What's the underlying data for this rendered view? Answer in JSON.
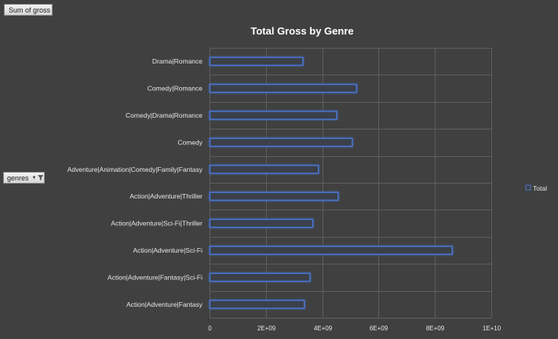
{
  "pivot": {
    "values_button": "Sum of gross",
    "axis_button": "genres"
  },
  "colors": {
    "background": "#404040",
    "grid": "#5e5e5e",
    "bar_fill": "#3b3f48",
    "bar_stroke": "#4a78d8",
    "bar_glow": "#2a4aa0"
  },
  "chart_data": {
    "type": "bar",
    "orientation": "horizontal",
    "title": "Total Gross by Genre",
    "xlabel": "",
    "ylabel": "",
    "categories": [
      "Drama|Romance",
      "Comedy|Romance",
      "Comedy|Drama|Romance",
      "Comedy",
      "Adventure|Animation|Comedy|Family|Fantasy",
      "Action|Adventure|Thriller",
      "Action|Adventure|Sci-Fi|Thriller",
      "Action|Adventure|Sci-Fi",
      "Action|Adventure|Fantasy|Sci-Fi",
      "Action|Adventure|Fantasy"
    ],
    "series": [
      {
        "name": "Total",
        "values": [
          3300000000,
          5200000000,
          4500000000,
          5050000000,
          3850000000,
          4550000000,
          3650000000,
          8600000000,
          3550000000,
          3350000000
        ]
      }
    ],
    "xlim": [
      0,
      10000000000
    ],
    "x_ticks": [
      0,
      2000000000,
      4000000000,
      6000000000,
      8000000000,
      10000000000
    ],
    "x_tick_labels": [
      "0",
      "2E+09",
      "4E+09",
      "6E+09",
      "8E+09",
      "1E+10"
    ],
    "grid": true,
    "legend": {
      "position": "right",
      "entries": [
        "Total"
      ]
    }
  }
}
